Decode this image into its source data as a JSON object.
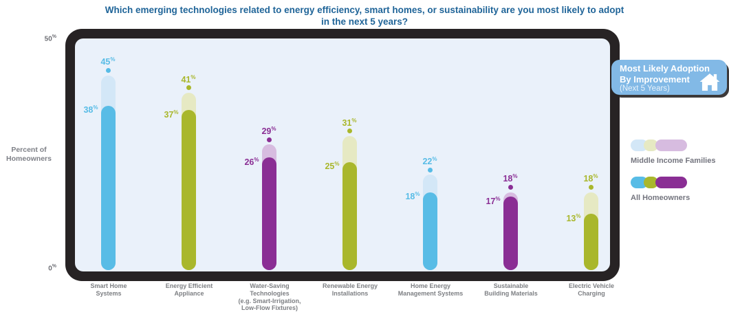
{
  "title": {
    "text": "Which emerging technologies related to energy efficiency, smart homes, or sustainability are you most likely to adopt in the next 5 years?",
    "color": "#1f6498"
  },
  "y_axis": {
    "top_tick": "50",
    "bottom_tick": "0",
    "tick_suffix": "%",
    "label_line1": "Percent of",
    "label_line2": "Homeowners"
  },
  "badge": {
    "line1": "Most Likely Adoption",
    "line2": "By Improvement",
    "line3": "(Next 5 Years)",
    "icon": "home-icon",
    "bg": "#82b9e6"
  },
  "legend": [
    {
      "label": "Middle Income Families",
      "colors": [
        "#d3e7f7",
        "#e6e9c3",
        "#d7bce0"
      ]
    },
    {
      "label": "All Homeowners",
      "colors": [
        "#58bce6",
        "#a9b72c",
        "#8a2e94"
      ]
    }
  ],
  "chart_data": {
    "type": "bar",
    "title": "Which emerging technologies related to energy efficiency, smart homes, or sustainability are you most likely to adopt in the next 5 years?",
    "categories": [
      "Smart Home Systems",
      "Energy Efficient Appliance",
      "Water-Saving Technologies (e.g. Smart-Irrigation, Low-Flow Fixtures)",
      "Renewable Energy Installations",
      "Home Energy Management Systems",
      "Sustainable Building Materials",
      "Electric Vehicle Charging"
    ],
    "category_lines": [
      [
        "Smart Home",
        "Systems"
      ],
      [
        "Energy Efficient",
        "Appliance"
      ],
      [
        "Water-Saving",
        "Technologies",
        "(e.g. Smart-Irrigation,",
        "Low-Flow Fixtures)"
      ],
      [
        "Renewable Energy",
        "Installations"
      ],
      [
        "Home Energy",
        "Management Systems"
      ],
      [
        "Sustainable",
        "Building Materials"
      ],
      [
        "Electric Vehicle",
        "Charging"
      ]
    ],
    "series": [
      {
        "name": "Middle Income Families",
        "values": [
          45,
          41,
          29,
          31,
          22,
          18,
          18
        ]
      },
      {
        "name": "All Homeowners",
        "values": [
          38,
          37,
          26,
          25,
          18,
          17,
          13
        ]
      }
    ],
    "value_suffix": "%",
    "ylabel": "Percent of Homeowners",
    "ylim": [
      0,
      50
    ],
    "grid": false,
    "legend_position": "right",
    "bar_palette": [
      "blue",
      "olive",
      "purple",
      "olive",
      "blue",
      "purple",
      "olive"
    ],
    "colors": {
      "blue": {
        "pastel": "#d3e7f7",
        "saturated": "#58bce6"
      },
      "olive": {
        "pastel": "#e6e9c3",
        "saturated": "#a9b72c"
      },
      "purple": {
        "pastel": "#d7bce0",
        "saturated": "#8a2e94"
      }
    }
  }
}
